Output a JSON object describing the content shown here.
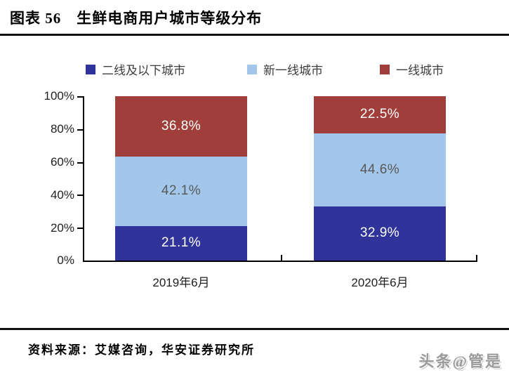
{
  "page": {
    "title": "图表 56　生鲜电商用户城市等级分布",
    "source": "资料来源：艾媒咨询，华安证券研究所",
    "watermark": "头条@管是"
  },
  "chart_data": {
    "type": "bar",
    "variant": "stacked-100-percent-column",
    "title": "生鲜电商用户城市等级分布",
    "categories": [
      "2019年6月",
      "2020年6月"
    ],
    "series": [
      {
        "name": "二线及以下城市",
        "color": "#30339A",
        "label_color": "#FFFFFF",
        "values": [
          21.1,
          32.9
        ]
      },
      {
        "name": "新一线城市",
        "color": "#A3C7EA",
        "label_color": "#595959",
        "values": [
          42.1,
          44.6
        ]
      },
      {
        "name": "一线城市",
        "color": "#A03E3B",
        "label_color": "#FFFFFF",
        "values": [
          36.8,
          22.5
        ]
      }
    ],
    "value_suffix": "%",
    "ylim": [
      0,
      100
    ],
    "yticks": [
      "0%",
      "20%",
      "40%",
      "60%",
      "80%",
      "100%"
    ],
    "xlabel": "",
    "ylabel": "",
    "grid": false,
    "legend_position": "top",
    "axis_color": "#000000"
  }
}
